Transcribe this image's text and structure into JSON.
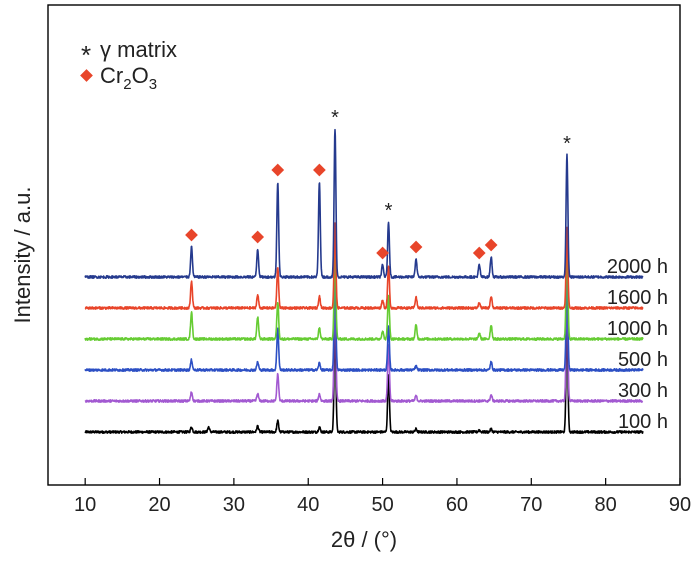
{
  "chart_data": {
    "type": "line",
    "xlabel": "2θ / (°)",
    "ylabel": "Intensity / a.u.",
    "xlim": [
      5,
      90
    ],
    "x_ticks": [
      10,
      20,
      30,
      40,
      50,
      60,
      70,
      80,
      90
    ],
    "y_ticks": [],
    "grid": false,
    "legend_position": "top-left",
    "legend": [
      {
        "marker": "*",
        "label": "γ matrix",
        "color": "#222222"
      },
      {
        "marker": "diamond",
        "label": "Cr2O3",
        "color": "#e8452a"
      }
    ],
    "x_range_data": [
      10,
      85
    ],
    "gamma_peaks": [
      43.6,
      50.8,
      74.8
    ],
    "cr2o3_peaks": [
      24.3,
      33.2,
      35.9,
      41.5,
      50.0,
      54.5,
      63.0,
      64.6
    ],
    "series": [
      {
        "name": "100 h",
        "color": "#000000",
        "baseline": 0.0,
        "peaks": [
          [
            24.3,
            5
          ],
          [
            26.6,
            5
          ],
          [
            33.2,
            6
          ],
          [
            35.9,
            11
          ],
          [
            41.5,
            5
          ],
          [
            43.6,
            108
          ],
          [
            50.8,
            56
          ],
          [
            54.5,
            3
          ],
          [
            63.0,
            2
          ],
          [
            64.6,
            3
          ],
          [
            74.8,
            110
          ]
        ]
      },
      {
        "name": "300 h",
        "color": "#a259d1",
        "baseline": 1.0,
        "peaks": [
          [
            24.3,
            9
          ],
          [
            33.2,
            7
          ],
          [
            35.9,
            27
          ],
          [
            41.5,
            7
          ],
          [
            43.6,
            105
          ],
          [
            50.8,
            55
          ],
          [
            54.5,
            5
          ],
          [
            64.6,
            6
          ],
          [
            74.8,
            108
          ]
        ]
      },
      {
        "name": "500 h",
        "color": "#2c4fc4",
        "baseline": 2.0,
        "peaks": [
          [
            24.3,
            10
          ],
          [
            33.2,
            8
          ],
          [
            35.9,
            42
          ],
          [
            41.5,
            7
          ],
          [
            43.6,
            95
          ],
          [
            50.8,
            43
          ],
          [
            54.5,
            4
          ],
          [
            64.6,
            8
          ],
          [
            74.8,
            94
          ]
        ]
      },
      {
        "name": "1000 h",
        "color": "#66cc33",
        "baseline": 3.0,
        "peaks": [
          [
            24.3,
            27
          ],
          [
            33.2,
            22
          ],
          [
            35.9,
            37
          ],
          [
            41.5,
            11
          ],
          [
            43.6,
            88
          ],
          [
            50.0,
            8
          ],
          [
            50.8,
            44
          ],
          [
            54.5,
            14
          ],
          [
            63.0,
            6
          ],
          [
            64.6,
            14
          ],
          [
            74.8,
            95
          ]
        ]
      },
      {
        "name": "1600 h",
        "color": "#e8452a",
        "baseline": 4.0,
        "peaks": [
          [
            24.3,
            27
          ],
          [
            33.2,
            13
          ],
          [
            35.9,
            40
          ],
          [
            41.5,
            12
          ],
          [
            43.6,
            84
          ],
          [
            50.0,
            8
          ],
          [
            50.8,
            42
          ],
          [
            54.5,
            11
          ],
          [
            63.0,
            5
          ],
          [
            64.6,
            12
          ],
          [
            74.8,
            80
          ]
        ]
      },
      {
        "name": "2000 h",
        "color": "#253a8e",
        "baseline": 5.0,
        "peaks": [
          [
            24.3,
            30
          ],
          [
            33.2,
            28
          ],
          [
            35.9,
            95
          ],
          [
            41.5,
            95
          ],
          [
            43.6,
            148
          ],
          [
            50.0,
            12
          ],
          [
            50.8,
            55
          ],
          [
            54.5,
            18
          ],
          [
            63.0,
            12
          ],
          [
            64.6,
            20
          ],
          [
            74.8,
            122
          ]
        ]
      }
    ]
  }
}
